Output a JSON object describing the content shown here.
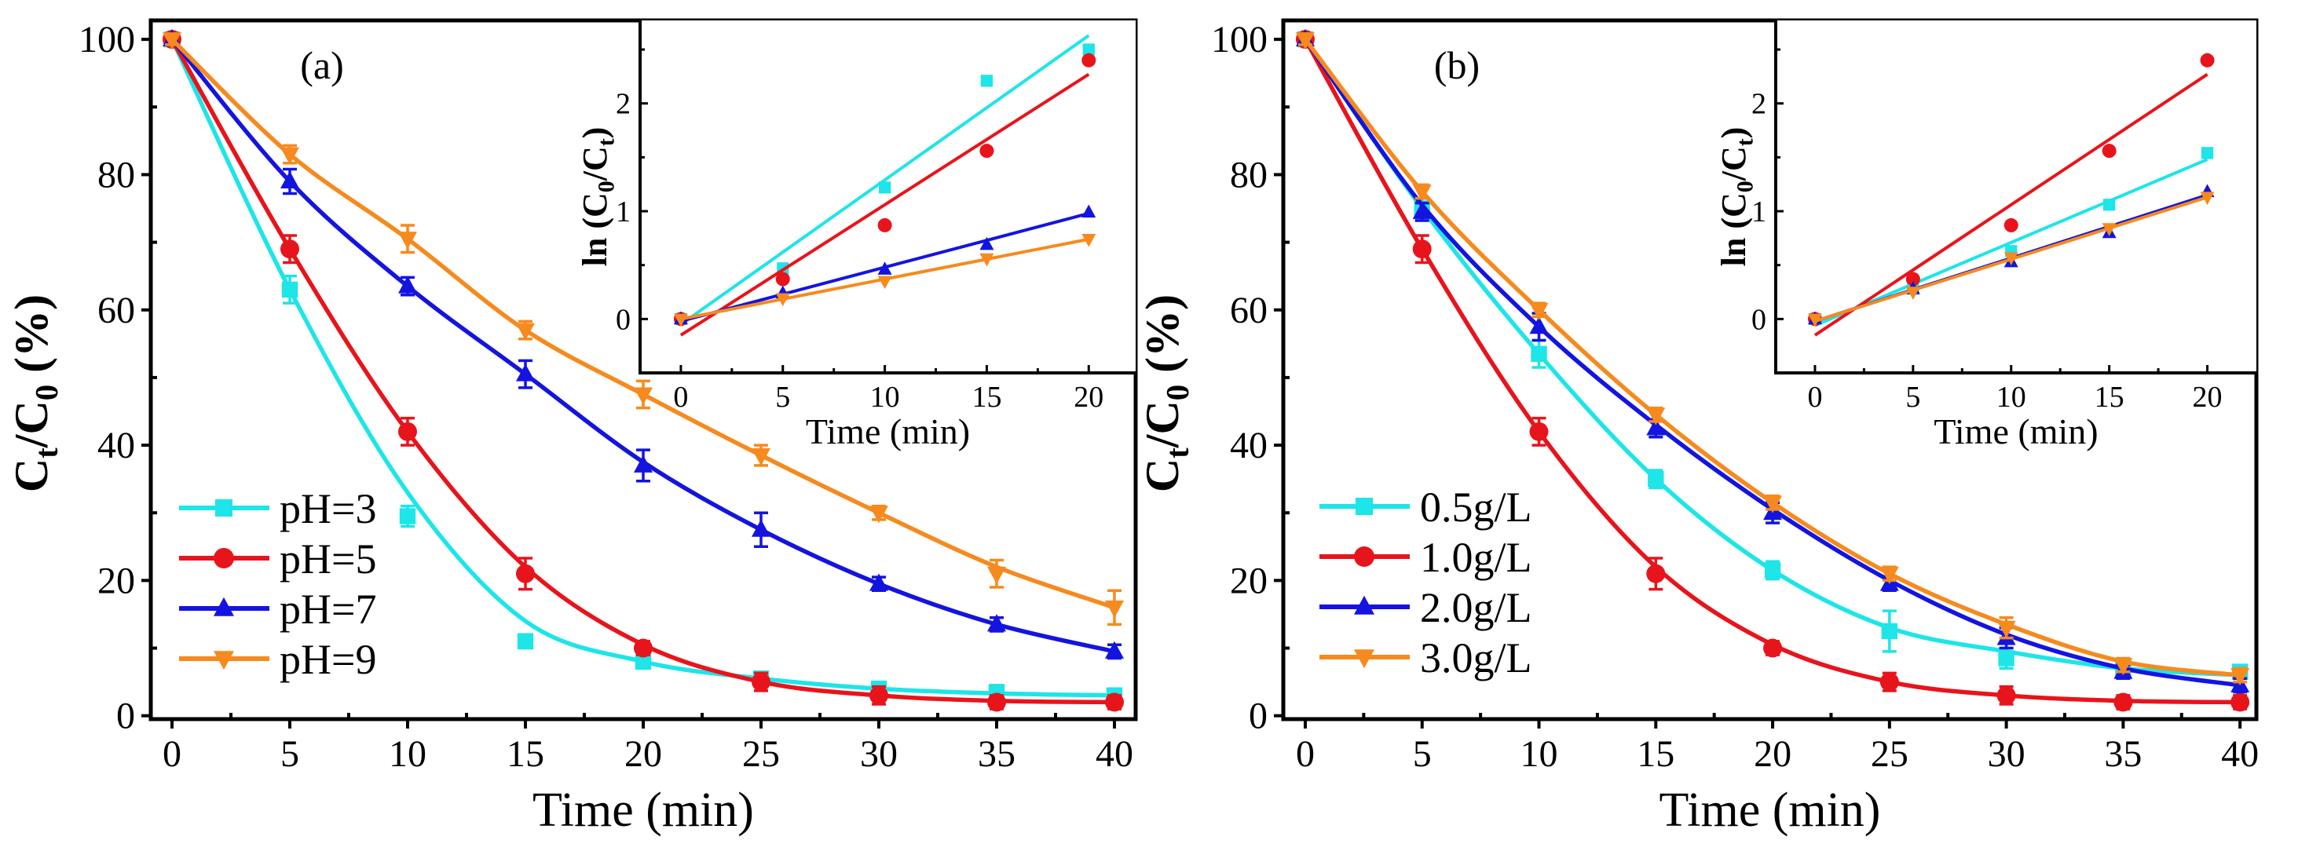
{
  "chart_data": [
    {
      "panel": "a",
      "type": "line",
      "title": "(a)",
      "xlabel": "Time (min)",
      "ylabel_parts": [
        {
          "t": "C"
        },
        {
          "t": "t",
          "sub": true
        },
        {
          "t": "/C"
        },
        {
          "t": "0",
          "sub": true
        },
        {
          "t": " (%)"
        }
      ],
      "xlim": [
        -0.9,
        40.9
      ],
      "ylim": [
        -0.5,
        102.8
      ],
      "xticks": [
        0,
        5,
        10,
        15,
        20,
        25,
        30,
        35,
        40
      ],
      "yticks": [
        0,
        20,
        40,
        60,
        80,
        100
      ],
      "grid": false,
      "legend_position": "bottom-left",
      "series": [
        {
          "name": "pH=3",
          "color": "#1de5e8",
          "marker": "square",
          "x": [
            0,
            5,
            10,
            15,
            20,
            25,
            30,
            35,
            40
          ],
          "y": [
            100,
            63,
            29.5,
            11,
            8,
            5.5,
            4,
            3.5,
            3
          ],
          "err": [
            0.8,
            2,
            1.5,
            1,
            1,
            1,
            1,
            1,
            1
          ],
          "fit": [
            100,
            63,
            33,
            14,
            8,
            5.5,
            4,
            3.3,
            3
          ]
        },
        {
          "name": "pH=5",
          "color": "#e8141b",
          "marker": "circle",
          "x": [
            0,
            5,
            10,
            15,
            20,
            25,
            30,
            35,
            40
          ],
          "y": [
            100,
            69,
            42,
            21,
            10,
            5,
            3,
            2,
            2
          ],
          "err": [
            0.8,
            2,
            2,
            2.3,
            1,
            1.3,
            1.3,
            1,
            1
          ],
          "fit": [
            100,
            69,
            42,
            22,
            10.5,
            5,
            3,
            2.2,
            2
          ]
        },
        {
          "name": "pH=7",
          "color": "#1414e0",
          "marker": "triangle-up",
          "x": [
            0,
            5,
            10,
            15,
            20,
            25,
            30,
            35,
            40
          ],
          "y": [
            100,
            79,
            63.5,
            50.5,
            37,
            27.5,
            19.5,
            13.5,
            9.5
          ],
          "err": [
            0.8,
            1.8,
            1.3,
            2,
            2.3,
            2.5,
            1,
            1,
            1
          ],
          "fit": [
            100,
            79,
            63.5,
            50.5,
            37.5,
            27.5,
            19.5,
            13.5,
            9.5
          ]
        },
        {
          "name": "pH=9",
          "color": "#f68a1e",
          "marker": "triangle-down",
          "x": [
            0,
            5,
            10,
            15,
            20,
            25,
            30,
            35,
            40
          ],
          "y": [
            100,
            83,
            70.5,
            57,
            47.5,
            38.5,
            30,
            21,
            16
          ],
          "err": [
            0.8,
            1.3,
            2,
            1.3,
            2,
            1.5,
            1,
            2,
            2.5
          ],
          "fit": [
            100,
            83,
            70.5,
            57,
            47.5,
            38.5,
            30,
            22,
            16
          ]
        }
      ],
      "inset": {
        "type": "scatter",
        "xlabel": "Time (min)",
        "ylabel_parts": [
          {
            "t": "ln (C"
          },
          {
            "t": "0",
            "sub": true
          },
          {
            "t": "/C"
          },
          {
            "t": "t",
            "sub": true
          },
          {
            "t": ")"
          }
        ],
        "xlim": [
          -2,
          22.3
        ],
        "ylim": [
          -0.5,
          2.77
        ],
        "xticks": [
          0,
          5,
          10,
          15,
          20
        ],
        "yticks": [
          0,
          1,
          2
        ],
        "series": [
          {
            "name": "pH=3",
            "color": "#1de5e8",
            "marker": "square",
            "x": [
              0,
              5,
              10,
              15,
              20
            ],
            "y": [
              0,
              0.47,
              1.22,
              2.21,
              2.5
            ],
            "fit_x": [
              0,
              20
            ],
            "fit_y": [
              -0.05,
              2.63
            ]
          },
          {
            "name": "pH=5",
            "color": "#e8141b",
            "marker": "circle",
            "x": [
              0,
              5,
              10,
              15,
              20
            ],
            "y": [
              0,
              0.37,
              0.87,
              1.56,
              2.4
            ],
            "fit_x": [
              0,
              20
            ],
            "fit_y": [
              -0.15,
              2.27
            ]
          },
          {
            "name": "pH=7",
            "color": "#1414e0",
            "marker": "triangle-up",
            "x": [
              0,
              5,
              10,
              15,
              20
            ],
            "y": [
              0,
              0.24,
              0.46,
              0.69,
              0.99
            ],
            "fit_x": [
              0,
              20
            ],
            "fit_y": [
              -0.02,
              0.98
            ]
          },
          {
            "name": "pH=9",
            "color": "#f68a1e",
            "marker": "triangle-down",
            "x": [
              0,
              5,
              10,
              15,
              20
            ],
            "y": [
              0,
              0.19,
              0.35,
              0.56,
              0.74
            ],
            "fit_x": [
              0,
              20
            ],
            "fit_y": [
              0,
              0.74
            ]
          }
        ]
      }
    },
    {
      "panel": "b",
      "type": "line",
      "title": "(b)",
      "xlabel": "Time (min)",
      "ylabel_parts": [
        {
          "t": "C"
        },
        {
          "t": "t",
          "sub": true
        },
        {
          "t": "/C"
        },
        {
          "t": "0",
          "sub": true
        },
        {
          "t": " (%)"
        }
      ],
      "xlim": [
        -0.94,
        40.7
      ],
      "ylim": [
        -0.5,
        102.8
      ],
      "xticks": [
        0,
        5,
        10,
        15,
        20,
        25,
        30,
        35,
        40
      ],
      "yticks": [
        0,
        20,
        40,
        60,
        80,
        100
      ],
      "grid": false,
      "legend_position": "bottom-left",
      "series": [
        {
          "name": "0.5g/L",
          "color": "#1de5e8",
          "marker": "square",
          "x": [
            0,
            5,
            10,
            15,
            20,
            25,
            30,
            35,
            40
          ],
          "y": [
            100,
            75,
            53.5,
            35,
            21.5,
            12.5,
            8.5,
            7,
            6.5
          ],
          "err": [
            0.8,
            1.5,
            2,
            1.3,
            1.3,
            3,
            1.5,
            1,
            1
          ],
          "fit": [
            100,
            75,
            53.5,
            35,
            21.5,
            13,
            9.5,
            7,
            6
          ]
        },
        {
          "name": "1.0g/L",
          "color": "#e8141b",
          "marker": "circle",
          "x": [
            0,
            5,
            10,
            15,
            20,
            25,
            30,
            35,
            40
          ],
          "y": [
            100,
            69,
            42,
            21,
            10,
            5,
            3,
            2,
            2
          ],
          "err": [
            0.8,
            2,
            2,
            2.3,
            1,
            1.3,
            1.3,
            1,
            1
          ],
          "fit": [
            100,
            69,
            42,
            22,
            10.5,
            5,
            3,
            2.2,
            2
          ]
        },
        {
          "name": "2.0g/L",
          "color": "#1414e0",
          "marker": "triangle-up",
          "x": [
            0,
            5,
            10,
            15,
            20,
            25,
            30,
            35,
            40
          ],
          "y": [
            100,
            74.5,
            57.5,
            42.5,
            30,
            19.5,
            11.5,
            6.5,
            4.5
          ],
          "err": [
            0.8,
            1.3,
            2,
            1.3,
            1.5,
            1,
            1.5,
            1,
            1
          ],
          "fit": [
            100,
            75.5,
            57.5,
            43,
            30.5,
            20,
            12,
            7,
            4.5
          ]
        },
        {
          "name": "3.0g/L",
          "color": "#f68a1e",
          "marker": "triangle-down",
          "x": [
            0,
            5,
            10,
            15,
            20,
            25,
            30,
            35,
            40
          ],
          "y": [
            100,
            77.5,
            60,
            44.5,
            31.5,
            21,
            13,
            7.5,
            6
          ],
          "err": [
            0.8,
            1,
            1,
            1,
            1,
            1,
            1.5,
            1,
            1
          ],
          "fit": [
            100,
            77.5,
            60,
            44.5,
            31.5,
            21,
            13.5,
            8,
            6
          ]
        }
      ],
      "inset": {
        "type": "scatter",
        "xlabel": "Time (min)",
        "ylabel_parts": [
          {
            "t": "ln (C"
          },
          {
            "t": "0",
            "sub": true
          },
          {
            "t": "/C"
          },
          {
            "t": "t",
            "sub": true
          },
          {
            "t": ")"
          }
        ],
        "xlim": [
          -2,
          22.5
        ],
        "ylim": [
          -0.5,
          2.77
        ],
        "xticks": [
          0,
          5,
          10,
          15,
          20
        ],
        "yticks": [
          0,
          1,
          2
        ],
        "series": [
          {
            "name": "0.5g/L",
            "color": "#1de5e8",
            "marker": "square",
            "x": [
              0,
              5,
              10,
              15,
              20
            ],
            "y": [
              0,
              0.28,
              0.63,
              1.06,
              1.54
            ],
            "fit_x": [
              0,
              20
            ],
            "fit_y": [
              -0.06,
              1.48
            ]
          },
          {
            "name": "1.0g/L",
            "color": "#e8141b",
            "marker": "circle",
            "x": [
              0,
              5,
              10,
              15,
              20
            ],
            "y": [
              0,
              0.37,
              0.87,
              1.56,
              2.4
            ],
            "fit_x": [
              0,
              20
            ],
            "fit_y": [
              -0.15,
              2.27
            ]
          },
          {
            "name": "2.0g/L",
            "color": "#1414e0",
            "marker": "triangle-up",
            "x": [
              0,
              5,
              10,
              15,
              20
            ],
            "y": [
              0,
              0.28,
              0.53,
              0.8,
              1.18
            ],
            "fit_x": [
              0,
              20
            ],
            "fit_y": [
              -0.02,
              1.15
            ]
          },
          {
            "name": "3.0g/L",
            "color": "#f68a1e",
            "marker": "triangle-down",
            "x": [
              0,
              5,
              10,
              15,
              20
            ],
            "y": [
              0,
              0.25,
              0.57,
              0.84,
              1.13
            ],
            "fit_x": [
              0,
              20
            ],
            "fit_y": [
              -0.02,
              1.13
            ]
          }
        ]
      }
    }
  ]
}
